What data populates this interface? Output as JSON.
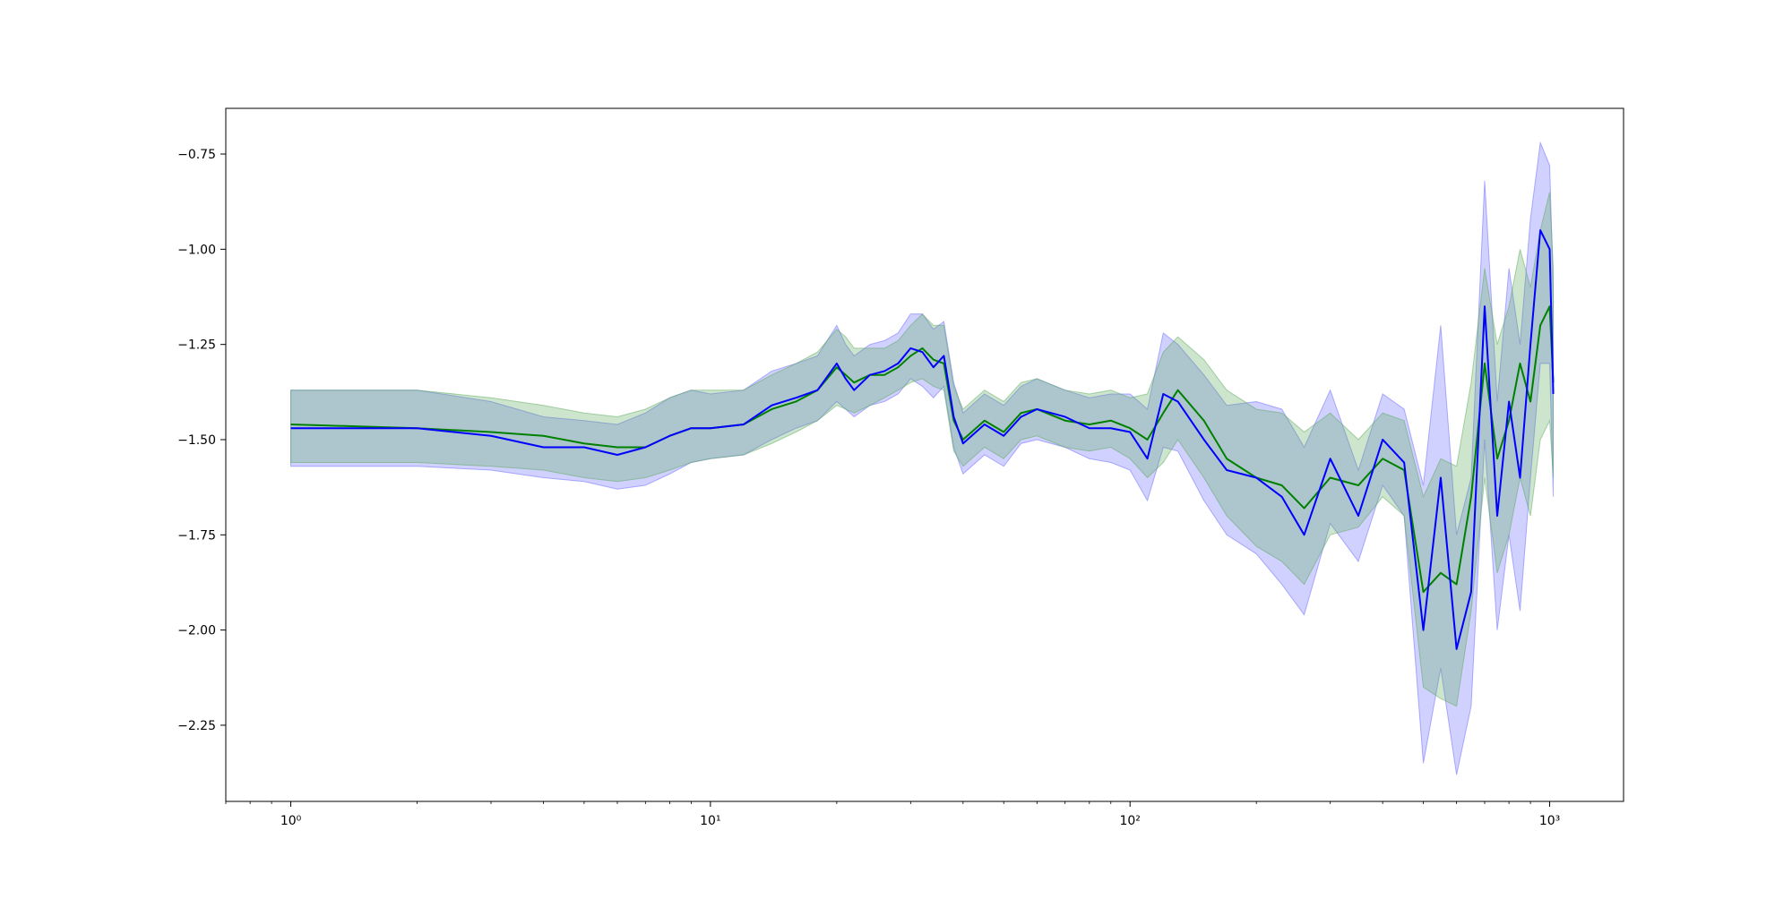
{
  "chart_data": {
    "type": "line",
    "title": "",
    "xlabel": "",
    "ylabel": "",
    "xscale": "log",
    "xlim": [
      0.7,
      1500
    ],
    "ylim": [
      -2.45,
      -0.63
    ],
    "grid": false,
    "legend": "none",
    "x_ticks": [
      {
        "value": 1,
        "label": "10⁰"
      },
      {
        "value": 10,
        "label": "10¹"
      },
      {
        "value": 100,
        "label": "10²"
      },
      {
        "value": 1000,
        "label": "10³"
      }
    ],
    "y_ticks": [
      {
        "value": -0.75,
        "label": "−0.75"
      },
      {
        "value": -1.0,
        "label": "−1.00"
      },
      {
        "value": -1.25,
        "label": "−1.25"
      },
      {
        "value": -1.5,
        "label": "−1.50"
      },
      {
        "value": -1.75,
        "label": "−1.75"
      },
      {
        "value": -2.0,
        "label": "−2.00"
      },
      {
        "value": -2.25,
        "label": "−2.25"
      }
    ],
    "colors": {
      "green_line": "#008000",
      "green_band": "#5aaa5a",
      "blue_line": "#0000ff",
      "blue_band": "#6666ff",
      "overlap_band": "#9db0cc"
    },
    "x": [
      1,
      2,
      3,
      4,
      5,
      6,
      7,
      8,
      9,
      10,
      12,
      14,
      16,
      18,
      20,
      21,
      22,
      24,
      26,
      28,
      30,
      32,
      34,
      36,
      38,
      40,
      45,
      50,
      55,
      60,
      70,
      80,
      90,
      100,
      110,
      120,
      130,
      150,
      170,
      200,
      230,
      260,
      300,
      350,
      400,
      450,
      500,
      550,
      600,
      650,
      700,
      750,
      800,
      850,
      900,
      950,
      1000,
      1020
    ],
    "series": [
      {
        "color": "green",
        "values": [
          -1.46,
          -1.47,
          -1.48,
          -1.49,
          -1.51,
          -1.52,
          -1.52,
          -1.49,
          -1.47,
          -1.47,
          -1.46,
          -1.42,
          -1.4,
          -1.37,
          -1.31,
          -1.33,
          -1.35,
          -1.33,
          -1.33,
          -1.31,
          -1.28,
          -1.26,
          -1.29,
          -1.3,
          -1.45,
          -1.5,
          -1.45,
          -1.48,
          -1.43,
          -1.42,
          -1.45,
          -1.46,
          -1.45,
          -1.47,
          -1.5,
          -1.43,
          -1.37,
          -1.45,
          -1.55,
          -1.6,
          -1.62,
          -1.68,
          -1.6,
          -1.62,
          -1.55,
          -1.58,
          -1.9,
          -1.85,
          -1.88,
          -1.65,
          -1.3,
          -1.55,
          -1.45,
          -1.3,
          -1.4,
          -1.2,
          -1.15,
          -1.35
        ],
        "band_low": [
          -1.56,
          -1.56,
          -1.57,
          -1.58,
          -1.6,
          -1.61,
          -1.6,
          -1.58,
          -1.56,
          -1.55,
          -1.54,
          -1.51,
          -1.48,
          -1.45,
          -1.41,
          -1.42,
          -1.43,
          -1.41,
          -1.39,
          -1.37,
          -1.35,
          -1.34,
          -1.36,
          -1.37,
          -1.53,
          -1.57,
          -1.52,
          -1.55,
          -1.5,
          -1.49,
          -1.52,
          -1.53,
          -1.52,
          -1.55,
          -1.6,
          -1.56,
          -1.5,
          -1.6,
          -1.7,
          -1.78,
          -1.82,
          -1.88,
          -1.75,
          -1.73,
          -1.65,
          -1.7,
          -2.15,
          -2.18,
          -2.2,
          -1.95,
          -1.6,
          -1.85,
          -1.75,
          -1.6,
          -1.7,
          -1.5,
          -1.45,
          -1.6
        ],
        "band_high": [
          -1.37,
          -1.37,
          -1.39,
          -1.41,
          -1.43,
          -1.44,
          -1.42,
          -1.39,
          -1.37,
          -1.37,
          -1.37,
          -1.33,
          -1.3,
          -1.27,
          -1.21,
          -1.23,
          -1.26,
          -1.26,
          -1.26,
          -1.24,
          -1.2,
          -1.17,
          -1.2,
          -1.2,
          -1.36,
          -1.42,
          -1.37,
          -1.4,
          -1.35,
          -1.34,
          -1.37,
          -1.38,
          -1.37,
          -1.39,
          -1.38,
          -1.27,
          -1.23,
          -1.29,
          -1.37,
          -1.42,
          -1.43,
          -1.48,
          -1.43,
          -1.5,
          -1.43,
          -1.45,
          -1.65,
          -1.55,
          -1.57,
          -1.35,
          -1.05,
          -1.25,
          -1.15,
          -1.0,
          -1.1,
          -0.95,
          -0.85,
          -1.05
        ]
      },
      {
        "color": "blue",
        "values": [
          -1.47,
          -1.47,
          -1.49,
          -1.52,
          -1.52,
          -1.54,
          -1.52,
          -1.49,
          -1.47,
          -1.47,
          -1.46,
          -1.41,
          -1.39,
          -1.37,
          -1.3,
          -1.34,
          -1.37,
          -1.33,
          -1.32,
          -1.3,
          -1.26,
          -1.27,
          -1.31,
          -1.28,
          -1.44,
          -1.51,
          -1.46,
          -1.49,
          -1.44,
          -1.42,
          -1.44,
          -1.47,
          -1.47,
          -1.48,
          -1.55,
          -1.38,
          -1.4,
          -1.5,
          -1.58,
          -1.6,
          -1.65,
          -1.75,
          -1.55,
          -1.7,
          -1.5,
          -1.56,
          -2.0,
          -1.6,
          -2.05,
          -1.9,
          -1.15,
          -1.7,
          -1.4,
          -1.6,
          -1.25,
          -0.95,
          -1.0,
          -1.38
        ],
        "band_low": [
          -1.57,
          -1.57,
          -1.58,
          -1.6,
          -1.61,
          -1.63,
          -1.62,
          -1.59,
          -1.56,
          -1.55,
          -1.54,
          -1.5,
          -1.47,
          -1.45,
          -1.4,
          -1.42,
          -1.44,
          -1.41,
          -1.4,
          -1.38,
          -1.34,
          -1.36,
          -1.39,
          -1.36,
          -1.52,
          -1.59,
          -1.54,
          -1.57,
          -1.51,
          -1.5,
          -1.52,
          -1.55,
          -1.56,
          -1.58,
          -1.66,
          -1.52,
          -1.53,
          -1.66,
          -1.75,
          -1.8,
          -1.88,
          -1.96,
          -1.72,
          -1.82,
          -1.62,
          -1.7,
          -2.35,
          -2.1,
          -2.38,
          -2.2,
          -1.5,
          -2.0,
          -1.75,
          -1.95,
          -1.6,
          -1.3,
          -1.3,
          -1.65
        ],
        "band_high": [
          -1.37,
          -1.37,
          -1.4,
          -1.44,
          -1.45,
          -1.46,
          -1.43,
          -1.39,
          -1.37,
          -1.38,
          -1.37,
          -1.32,
          -1.3,
          -1.28,
          -1.2,
          -1.25,
          -1.28,
          -1.25,
          -1.24,
          -1.22,
          -1.17,
          -1.17,
          -1.21,
          -1.19,
          -1.35,
          -1.43,
          -1.38,
          -1.41,
          -1.36,
          -1.34,
          -1.37,
          -1.39,
          -1.38,
          -1.38,
          -1.42,
          -1.22,
          -1.25,
          -1.33,
          -1.41,
          -1.4,
          -1.42,
          -1.52,
          -1.37,
          -1.58,
          -1.38,
          -1.42,
          -1.62,
          -1.2,
          -1.75,
          -1.6,
          -0.82,
          -1.4,
          -1.05,
          -1.25,
          -0.92,
          -0.72,
          -0.78,
          -1.1
        ]
      }
    ]
  }
}
